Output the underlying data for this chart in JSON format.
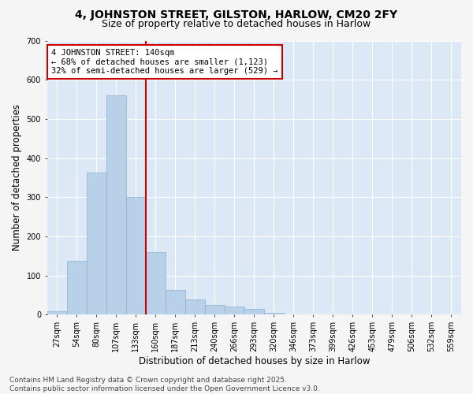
{
  "title_line1": "4, JOHNSTON STREET, GILSTON, HARLOW, CM20 2FY",
  "title_line2": "Size of property relative to detached houses in Harlow",
  "xlabel": "Distribution of detached houses by size in Harlow",
  "ylabel": "Number of detached properties",
  "background_color": "#dce8f5",
  "bar_color": "#b8d0e8",
  "bar_edge_color": "#8ab0d0",
  "grid_color": "#ffffff",
  "categories": [
    "27sqm",
    "54sqm",
    "80sqm",
    "107sqm",
    "133sqm",
    "160sqm",
    "187sqm",
    "213sqm",
    "240sqm",
    "266sqm",
    "293sqm",
    "320sqm",
    "346sqm",
    "373sqm",
    "399sqm",
    "426sqm",
    "453sqm",
    "479sqm",
    "506sqm",
    "532sqm",
    "559sqm"
  ],
  "values": [
    8,
    137,
    363,
    560,
    300,
    160,
    63,
    40,
    25,
    20,
    15,
    5,
    0,
    0,
    0,
    0,
    0,
    0,
    0,
    0,
    0
  ],
  "ylim": [
    0,
    700
  ],
  "yticks": [
    0,
    100,
    200,
    300,
    400,
    500,
    600,
    700
  ],
  "vline_x": 4.5,
  "vline_color": "#cc0000",
  "annotation_text": "4 JOHNSTON STREET: 140sqm\n← 68% of detached houses are smaller (1,123)\n32% of semi-detached houses are larger (529) →",
  "annotation_box_color": "#ffffff",
  "annotation_box_edge": "#cc0000",
  "footer_line1": "Contains HM Land Registry data © Crown copyright and database right 2025.",
  "footer_line2": "Contains public sector information licensed under the Open Government Licence v3.0.",
  "title_fontsize": 10,
  "subtitle_fontsize": 9,
  "axis_label_fontsize": 8.5,
  "tick_fontsize": 7,
  "annotation_fontsize": 7.5,
  "footer_fontsize": 6.5
}
